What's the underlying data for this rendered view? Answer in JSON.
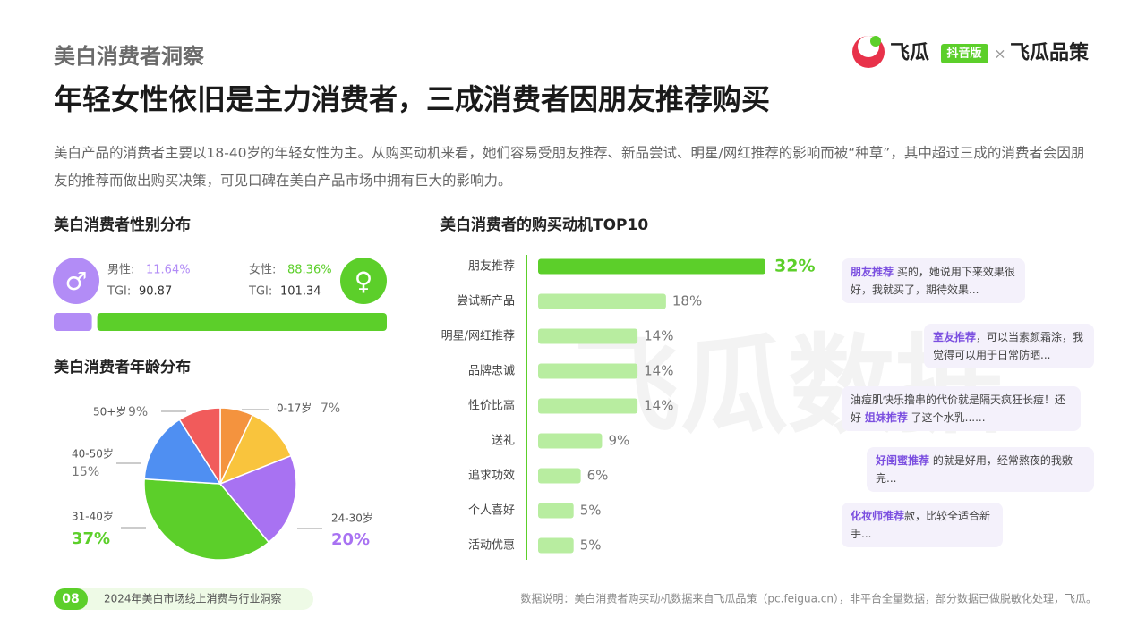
{
  "header": {
    "section": "美白消费者洞察",
    "title": "年轻女性依旧是主力消费者，三成消费者因朋友推荐购买",
    "description": "美白产品的消费者主要以18-40岁的年轻女性为主。从购买动机来看，她们容易受朋友推荐、新品尝试、明星/网红推荐的影响而被“种草”，其中超过三成的消费者会因朋友的推荐而做出购买决策，可见口碑在美白产品市场中拥有巨大的影响力。",
    "brand": {
      "name": "飞瓜",
      "badge": "抖音版",
      "separator": "×",
      "partner": "飞瓜品策"
    },
    "watermark": "飞瓜数据"
  },
  "chart_data": [
    {
      "type": "stacked-bar",
      "title": "美白消费者性别分布",
      "series": [
        {
          "name": "男性:",
          "color": "#b28cf6",
          "values": [
            11.64
          ],
          "value_labels": [
            "11.64%"
          ],
          "tgi_label": "TGI:",
          "tgi": 90.87
        },
        {
          "name": "女性:",
          "color": "#5ccf2a",
          "values": [
            88.36
          ],
          "value_labels": [
            "88.36%"
          ],
          "tgi_label": "TGI:",
          "tgi": 101.34
        }
      ]
    },
    {
      "type": "pie",
      "title": "美白消费者年龄分布",
      "categories": [
        "0-17岁",
        null,
        "24-30岁",
        "31-40岁",
        "40-50岁",
        "50+岁"
      ],
      "values": [
        7,
        12,
        20,
        37,
        15,
        9
      ],
      "value_labels": [
        "7%",
        null,
        "20%",
        "37%",
        "15%",
        "9%"
      ],
      "colors": [
        "#f4933e",
        "#f9c43d",
        "#a872f2",
        "#5ccf2a",
        "#4f8ff2",
        "#f15b5b"
      ]
    },
    {
      "type": "hbar",
      "title": "美白消费者的购买动机TOP10",
      "categories": [
        "朋友推荐",
        "尝试新产品",
        "明星/网红推荐",
        "品牌忠诚",
        "性价比高",
        "送礼",
        "追求功效",
        "个人喜好",
        "活动优惠"
      ],
      "values": [
        32,
        18,
        14,
        14,
        14,
        9,
        6,
        5,
        5
      ],
      "value_labels": [
        "32%",
        "18%",
        "14%",
        "14%",
        "14%",
        "9%",
        "6%",
        "5%",
        "5%"
      ],
      "colors": [
        "#5ccf2a",
        "#b8eda0",
        "#b8eda0",
        "#b8eda0",
        "#b8eda0",
        "#b8eda0",
        "#b8eda0",
        "#b8eda0",
        "#b8eda0"
      ]
    }
  ],
  "quotes": [
    {
      "highlight": "朋友推荐",
      "after": " 买的，她说用下来效果很好，我就买了，期待效果..."
    },
    {
      "highlight": "室友推荐",
      "after": "，可以当素颜霜涂，我觉得可以用于日常防晒..."
    },
    {
      "before": "油痘肌快乐撸串的代价就是隔天疯狂长痘！还好 ",
      "highlight": "姐妹推荐",
      "after": " 了这个水乳......"
    },
    {
      "highlight": "好闺蜜推荐",
      "after": " 的就是好用，经常熬夜的我敷完..."
    },
    {
      "highlight": "化妆师推荐",
      "after": "款，比较全适合新手..."
    }
  ],
  "footer": {
    "page": "08",
    "report": "2024年美白市场线上消费与行业洞察",
    "note": "数据说明：美白消费者购买动机数据来自飞瓜品策（pc.feigua.cn），非平台全量数据，部分数据已做脱敏化处理，飞瓜。"
  }
}
